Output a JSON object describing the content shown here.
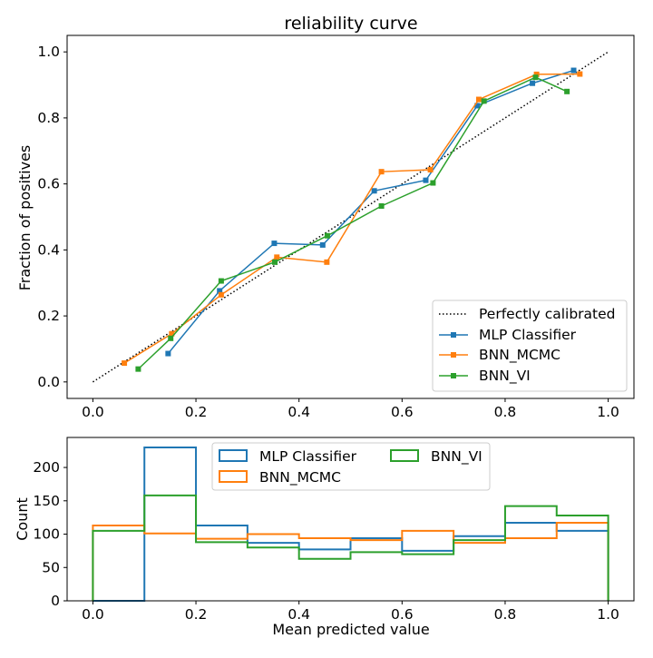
{
  "chart_data": [
    {
      "type": "line",
      "title": "reliability curve",
      "xlabel": "",
      "ylabel": "Fraction of positives",
      "xlim": [
        -0.05,
        1.05
      ],
      "ylim": [
        -0.05,
        1.05
      ],
      "xticks": [
        0.0,
        0.2,
        0.4,
        0.6,
        0.8,
        1.0
      ],
      "yticks": [
        0.0,
        0.2,
        0.4,
        0.6,
        0.8,
        1.0
      ],
      "tick_labels": [
        "0.0",
        "0.2",
        "0.4",
        "0.6",
        "0.8",
        "1.0"
      ],
      "grid": false,
      "legend_position": "lower-right",
      "reference_line": {
        "name": "Perfectly calibrated",
        "x": [
          0,
          1
        ],
        "y": [
          0,
          1
        ],
        "color": "#000000",
        "style": "dotted"
      },
      "series": [
        {
          "name": "MLP Classifier",
          "color": "#1f77b4",
          "x": [
            0.146,
            0.246,
            0.352,
            0.446,
            0.546,
            0.646,
            0.746,
            0.853,
            0.933
          ],
          "y": [
            0.086,
            0.276,
            0.42,
            0.415,
            0.579,
            0.611,
            0.837,
            0.905,
            0.944
          ]
        },
        {
          "name": "BNN_MCMC",
          "color": "#ff7f0e",
          "x": [
            0.061,
            0.153,
            0.249,
            0.357,
            0.454,
            0.56,
            0.655,
            0.749,
            0.861,
            0.945
          ],
          "y": [
            0.057,
            0.146,
            0.264,
            0.378,
            0.363,
            0.637,
            0.643,
            0.856,
            0.932,
            0.933
          ]
        },
        {
          "name": "BNN_VI",
          "color": "#2ca02c",
          "x": [
            0.088,
            0.151,
            0.249,
            0.353,
            0.455,
            0.56,
            0.66,
            0.759,
            0.859,
            0.92
          ],
          "y": [
            0.039,
            0.132,
            0.306,
            0.363,
            0.443,
            0.533,
            0.603,
            0.851,
            0.923,
            0.88
          ]
        }
      ]
    },
    {
      "type": "histogram",
      "title": "",
      "xlabel": "Mean predicted value",
      "ylabel": "Count",
      "xlim": [
        -0.05,
        1.05
      ],
      "ylim": [
        0,
        245
      ],
      "xticks": [
        0.0,
        0.2,
        0.4,
        0.6,
        0.8,
        1.0
      ],
      "tick_labels": [
        "0.0",
        "0.2",
        "0.4",
        "0.6",
        "0.8",
        "1.0"
      ],
      "yticks": [
        0,
        50,
        100,
        150,
        200
      ],
      "ytick_labels": [
        "0",
        "50",
        "100",
        "150",
        "200"
      ],
      "bin_edges": [
        0.0,
        0.1,
        0.2,
        0.3,
        0.4,
        0.5,
        0.6,
        0.7,
        0.8,
        0.9,
        1.0
      ],
      "grid": false,
      "legend_position": "upper-center",
      "series": [
        {
          "name": "MLP Classifier",
          "color": "#1f77b4",
          "counts": [
            0,
            230,
            113,
            87,
            77,
            94,
            75,
            97,
            117,
            105
          ]
        },
        {
          "name": "BNN_MCMC",
          "color": "#ff7f0e",
          "counts": [
            113,
            101,
            93,
            100,
            94,
            91,
            105,
            87,
            94,
            117
          ]
        },
        {
          "name": "BNN_VI",
          "color": "#2ca02c",
          "counts": [
            105,
            158,
            88,
            80,
            63,
            73,
            70,
            91,
            142,
            128
          ]
        }
      ]
    }
  ]
}
